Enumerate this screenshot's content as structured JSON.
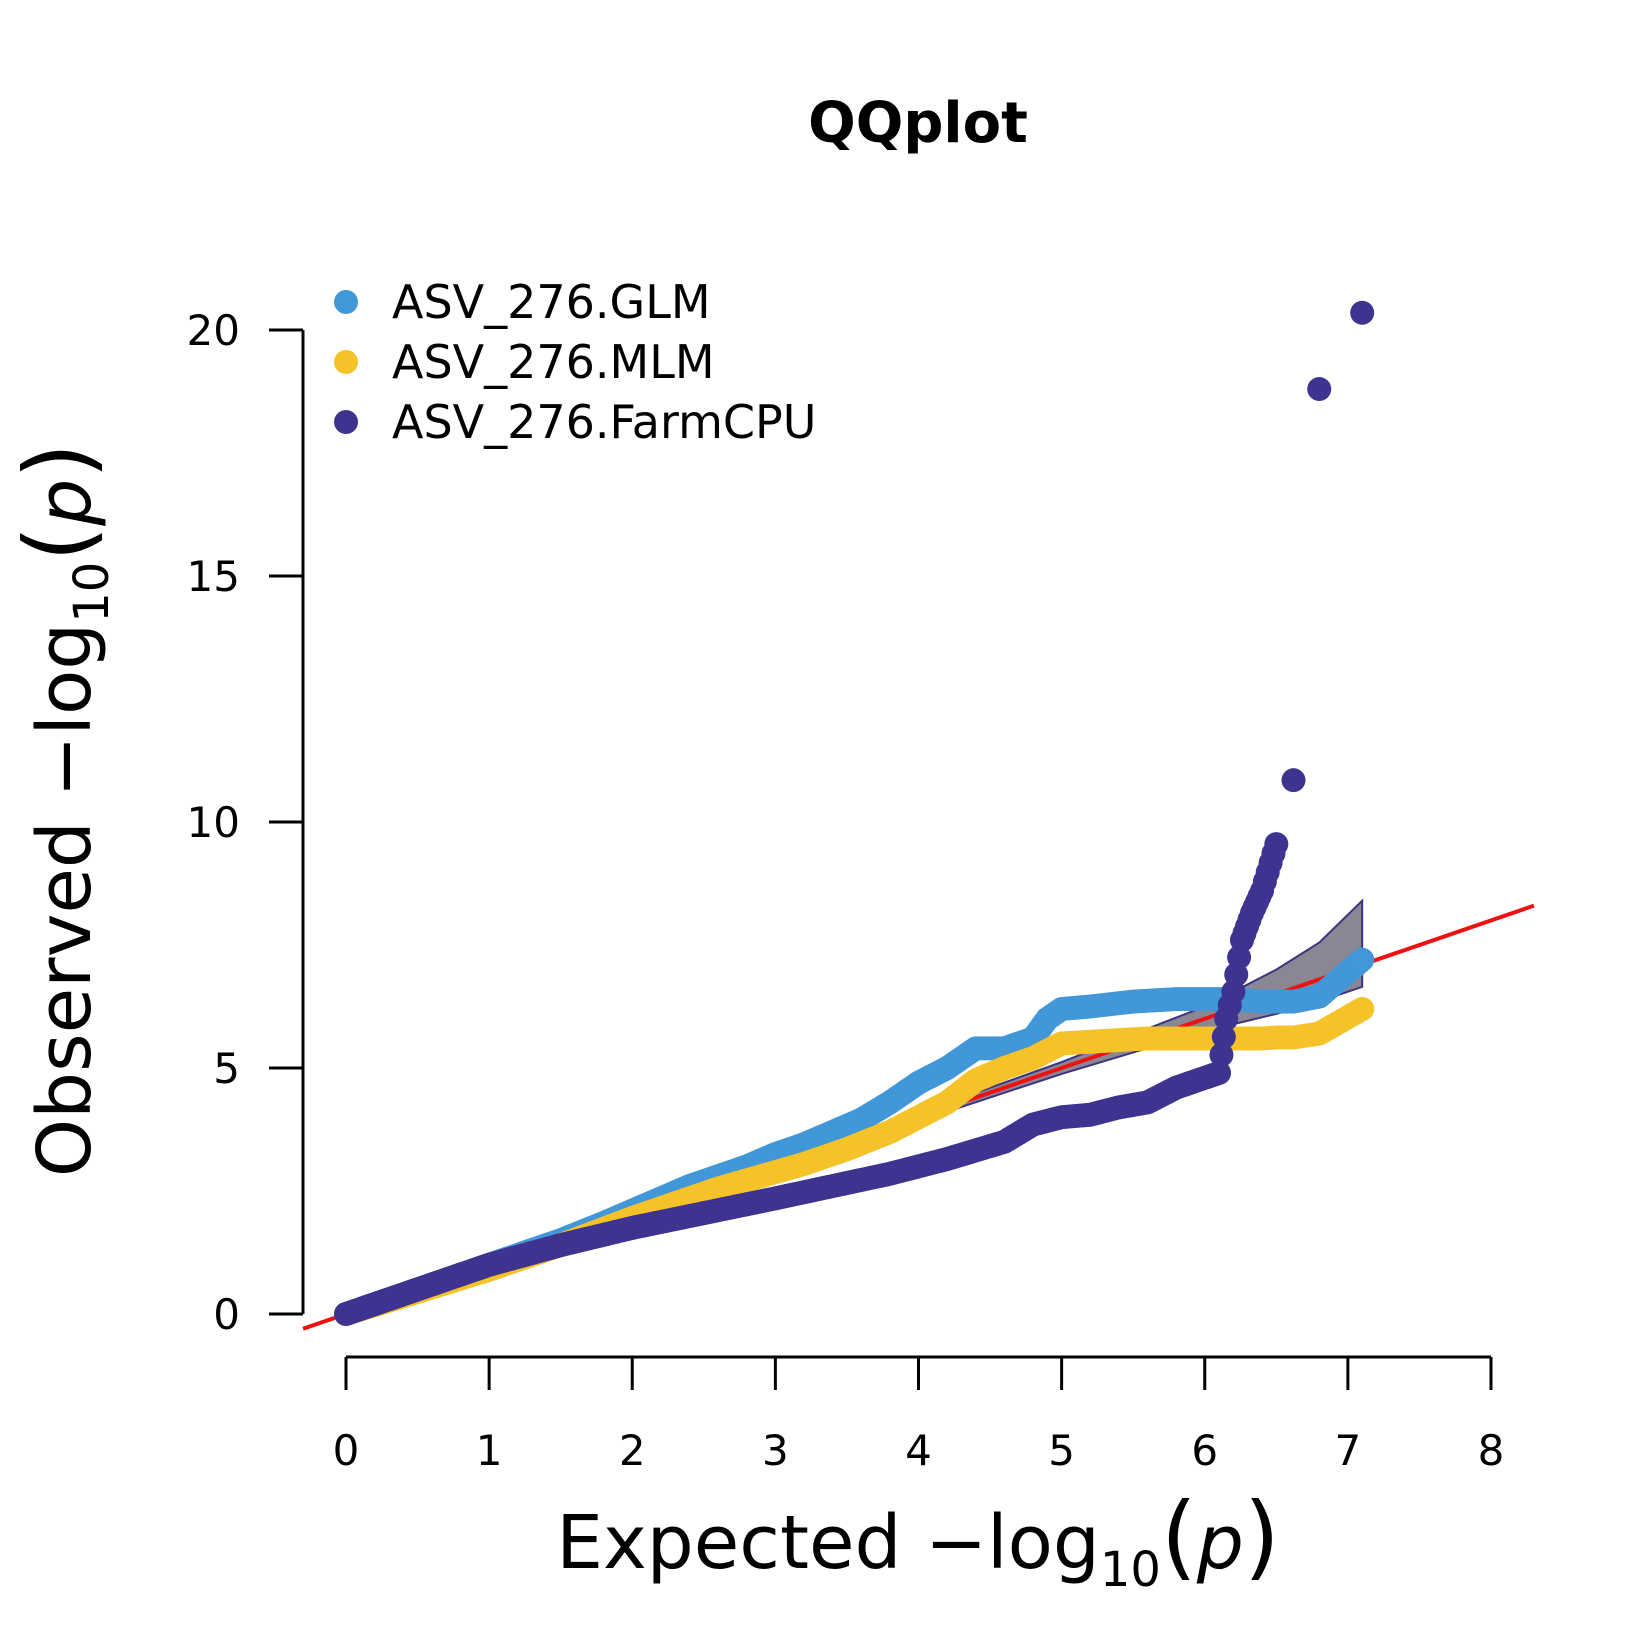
{
  "chart_data": {
    "type": "scatter",
    "title": "QQplot",
    "xlabel": {
      "prefix": "Expected  ",
      "minus": "−",
      "log": "log",
      "subscript": "10",
      "open_paren": "(",
      "variable": "p",
      "close_paren": ")"
    },
    "ylabel": {
      "prefix": "Observed  ",
      "minus": "−",
      "log": "log",
      "subscript": "10",
      "open_paren": "(",
      "variable": "p",
      "close_paren": ")"
    },
    "xlim": [
      0,
      8
    ],
    "ylim": [
      0,
      20
    ],
    "xticks": [
      0,
      1,
      2,
      3,
      4,
      5,
      6,
      7,
      8
    ],
    "yticks": [
      0,
      5,
      10,
      15,
      20
    ],
    "legend_position": "top-left",
    "reference_line": {
      "slope": 1,
      "intercept": 0,
      "color": "#ee1111"
    },
    "confidence_band": {
      "fill": "#8a8694",
      "stroke": "#3d3380",
      "x": [
        0,
        1,
        2,
        3,
        4,
        5,
        6,
        6.5,
        6.8,
        7.1
      ],
      "upper": [
        0,
        1.0,
        2.02,
        3.05,
        4.08,
        5.12,
        6.25,
        7.0,
        7.55,
        8.4
      ],
      "lower": [
        0,
        1.0,
        1.98,
        2.95,
        3.92,
        4.88,
        5.75,
        6.1,
        6.35,
        6.65
      ]
    },
    "series": [
      {
        "name": "ASV_276.GLM",
        "color": "#4197d8",
        "x": [
          0,
          0.5,
          1.0,
          1.5,
          1.8,
          2.0,
          2.2,
          2.4,
          2.6,
          2.8,
          3.0,
          3.2,
          3.4,
          3.6,
          3.8,
          4.0,
          4.2,
          4.4,
          4.6,
          4.8,
          4.9,
          5.0,
          5.2,
          5.5,
          5.8,
          6.0,
          6.2,
          6.4,
          6.5,
          6.62,
          6.8,
          7.1
        ],
        "y": [
          0,
          0.5,
          1.0,
          1.5,
          1.85,
          2.1,
          2.35,
          2.6,
          2.8,
          3.0,
          3.25,
          3.45,
          3.7,
          3.95,
          4.3,
          4.7,
          5.0,
          5.4,
          5.4,
          5.6,
          6.0,
          6.2,
          6.25,
          6.35,
          6.4,
          6.4,
          6.4,
          6.35,
          6.35,
          6.35,
          6.45,
          7.2
        ]
      },
      {
        "name": "ASV_276.MLM",
        "color": "#f5c228",
        "x": [
          0,
          0.5,
          1.0,
          1.5,
          2.0,
          2.3,
          2.6,
          2.9,
          3.2,
          3.5,
          3.8,
          4.0,
          4.2,
          4.4,
          4.6,
          4.8,
          5.0,
          5.3,
          5.6,
          6.0,
          6.2,
          6.4,
          6.5,
          6.62,
          6.8,
          7.1
        ],
        "y": [
          0,
          0.45,
          0.9,
          1.4,
          1.95,
          2.25,
          2.55,
          2.8,
          3.05,
          3.35,
          3.7,
          4.0,
          4.3,
          4.75,
          5.0,
          5.2,
          5.5,
          5.55,
          5.6,
          5.6,
          5.6,
          5.6,
          5.62,
          5.62,
          5.7,
          6.2
        ]
      },
      {
        "name": "ASV_276.FarmCPU",
        "color": "#3f3390",
        "x": [
          0,
          0.5,
          1.0,
          1.5,
          2.0,
          2.5,
          3.0,
          3.4,
          3.8,
          4.2,
          4.6,
          4.8,
          5.0,
          5.2,
          5.4,
          5.6,
          5.8,
          6.0,
          6.1,
          6.15,
          6.2,
          6.26,
          6.33,
          6.4,
          6.5,
          6.62,
          6.8,
          7.1
        ],
        "y": [
          0,
          0.5,
          1.0,
          1.4,
          1.75,
          2.05,
          2.35,
          2.6,
          2.85,
          3.15,
          3.5,
          3.85,
          4.0,
          4.05,
          4.2,
          4.3,
          4.6,
          4.8,
          4.9,
          6.0,
          6.55,
          7.6,
          8.15,
          8.6,
          9.55,
          10.85,
          18.8,
          20.35
        ]
      }
    ]
  }
}
